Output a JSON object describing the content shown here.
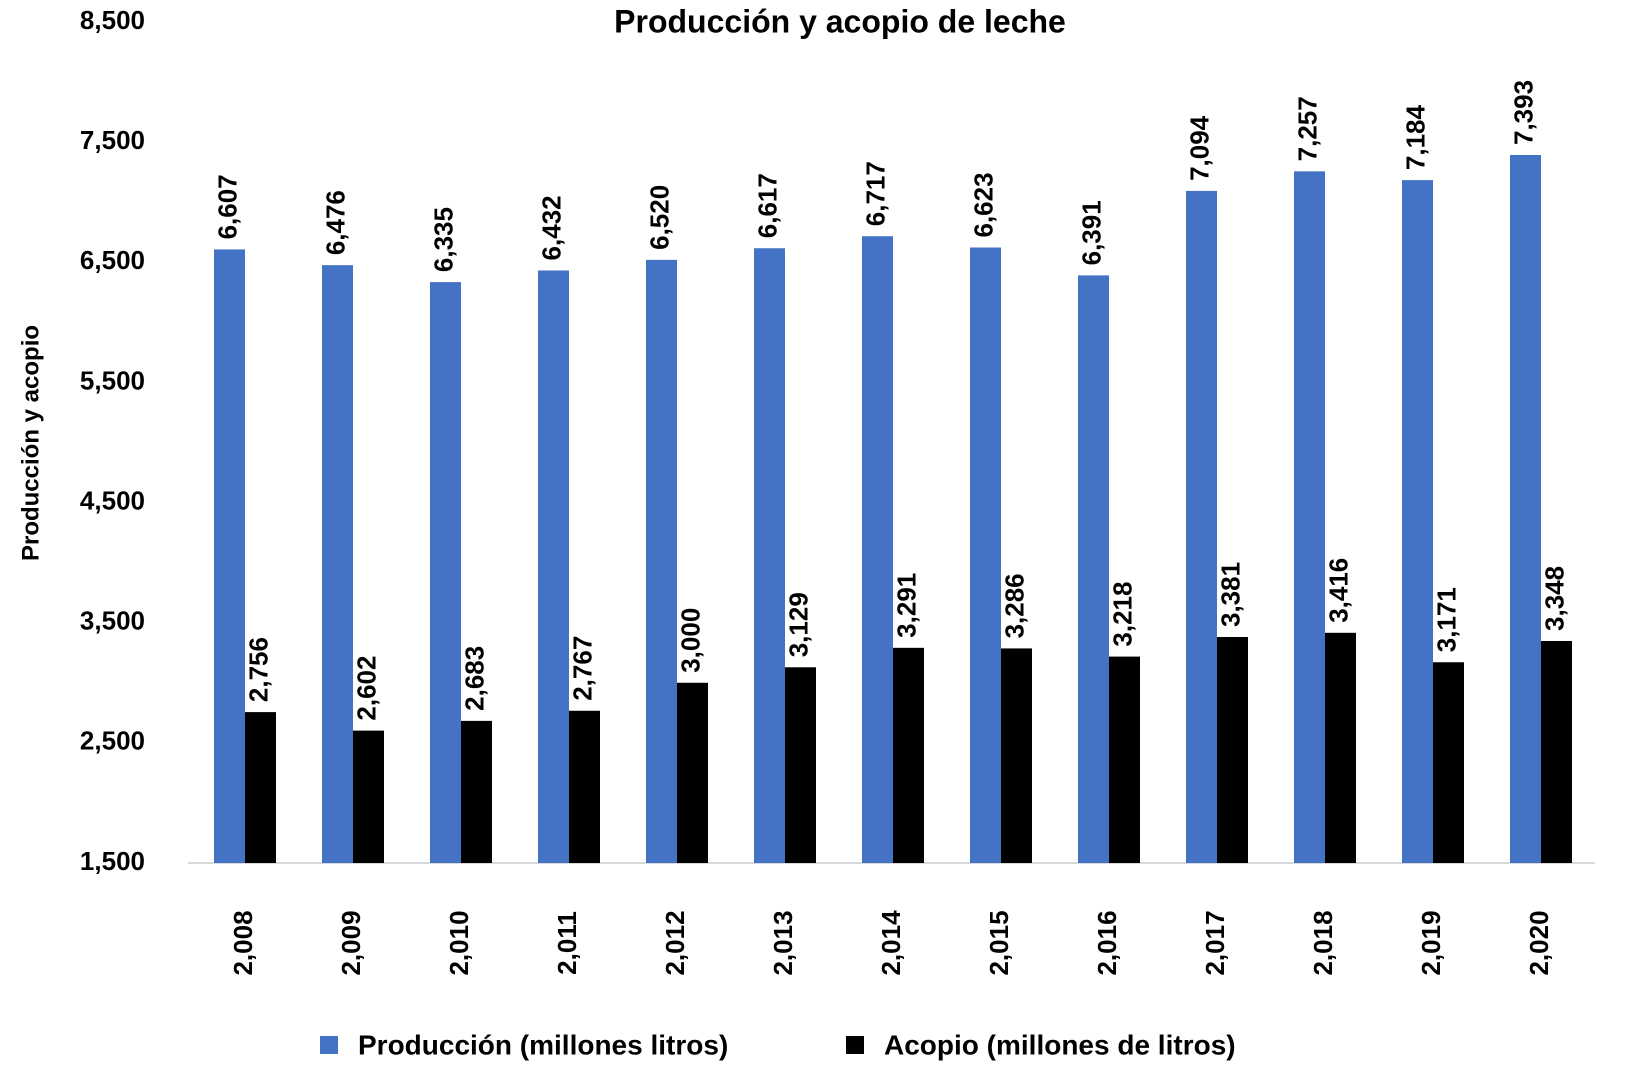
{
  "chart_data": {
    "type": "bar",
    "title": "Producción y acopio de leche",
    "y_label": "Producción y acopio",
    "categories": [
      "2,008",
      "2,009",
      "2,010",
      "2,011",
      "2,012",
      "2,013",
      "2,014",
      "2,015",
      "2,016",
      "2,017",
      "2,018",
      "2,019",
      "2,020"
    ],
    "series": [
      {
        "name": "Producción (millones litros)",
        "color": "#4472c4",
        "values": [
          6607,
          6476,
          6335,
          6432,
          6520,
          6617,
          6717,
          6623,
          6391,
          7094,
          7257,
          7184,
          7393
        ],
        "value_labels": [
          "6,607",
          "6,476",
          "6,335",
          "6,432",
          "6,520",
          "6,617",
          "6,717",
          "6,623",
          "6,391",
          "7,094",
          "7,257",
          "7,184",
          "7,393"
        ]
      },
      {
        "name": "Acopio (millones de litros)",
        "color": "#000000",
        "values": [
          2756,
          2602,
          2683,
          2767,
          3000,
          3129,
          3291,
          3286,
          3218,
          3381,
          3416,
          3171,
          3348
        ],
        "value_labels": [
          "2,756",
          "2,602",
          "2,683",
          "2,767",
          "3,000",
          "3,129",
          "3,291",
          "3,286",
          "3,218",
          "3,381",
          "3,416",
          "3,171",
          "3,348"
        ]
      }
    ],
    "ylim": [
      1500,
      8500
    ],
    "yticks": [
      {
        "value": 1500,
        "label": "1,500"
      },
      {
        "value": 2500,
        "label": "2,500"
      },
      {
        "value": 3500,
        "label": "3,500"
      },
      {
        "value": 4500,
        "label": "4,500"
      },
      {
        "value": 5500,
        "label": "5,500"
      },
      {
        "value": 6500,
        "label": "6,500"
      },
      {
        "value": 7500,
        "label": "7,500"
      },
      {
        "value": 8500,
        "label": "8,500"
      }
    ],
    "grid": false,
    "legend": "bottom"
  }
}
